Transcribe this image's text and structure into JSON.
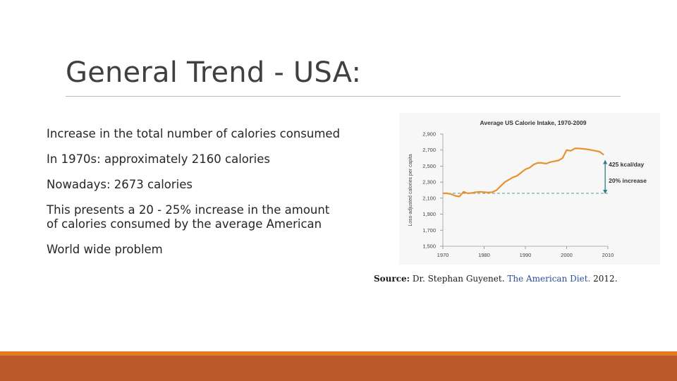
{
  "slide": {
    "title": "General Trend - USA:",
    "bullets": [
      "Increase in the total number of calories consumed",
      "In 1970s: approximately 2160 calories",
      "Nowadays: 2673 calories",
      "This presents a 20 - 25% increase in the amount of calories consumed by the average American",
      "World wide problem"
    ],
    "source": {
      "label": "Source:",
      "author": "Dr. Stephan Guyenet.",
      "link": "The American Diet.",
      "year": "2012."
    }
  },
  "colors": {
    "line": "#e8922e",
    "annotation": "#2f7d86",
    "bar_thin": "#e27d1f",
    "bar_thick": "#bb5a28"
  },
  "chart_data": {
    "type": "line",
    "title": "Average US Calorie Intake, 1970-2009",
    "xlabel": "",
    "ylabel": "Loss-adjusted calories per capita",
    "xlim": [
      1970,
      2010
    ],
    "ylim": [
      1500,
      2900
    ],
    "x_ticks": [
      "1970",
      "1980",
      "1990",
      "2000",
      "2010"
    ],
    "y_ticks": [
      "1,500",
      "1,700",
      "1,900",
      "2,100",
      "2,300",
      "2,500",
      "2,700",
      "2,900"
    ],
    "x": [
      1970,
      1971,
      1972,
      1973,
      1974,
      1975,
      1976,
      1977,
      1978,
      1979,
      1980,
      1981,
      1982,
      1983,
      1984,
      1985,
      1986,
      1987,
      1988,
      1989,
      1990,
      1991,
      1992,
      1993,
      1994,
      1995,
      1996,
      1997,
      1998,
      1999,
      2000,
      2001,
      2002,
      2003,
      2004,
      2005,
      2006,
      2007,
      2008,
      2009
    ],
    "y": [
      2160,
      2160,
      2150,
      2130,
      2120,
      2180,
      2160,
      2165,
      2175,
      2180,
      2175,
      2170,
      2175,
      2200,
      2250,
      2300,
      2330,
      2360,
      2380,
      2420,
      2460,
      2480,
      2520,
      2540,
      2540,
      2530,
      2550,
      2560,
      2570,
      2600,
      2700,
      2690,
      2720,
      2720,
      2715,
      2710,
      2700,
      2690,
      2680,
      2640
    ],
    "baseline": 2160,
    "annotations": [
      "425 kcal/day",
      "20% increase"
    ]
  }
}
